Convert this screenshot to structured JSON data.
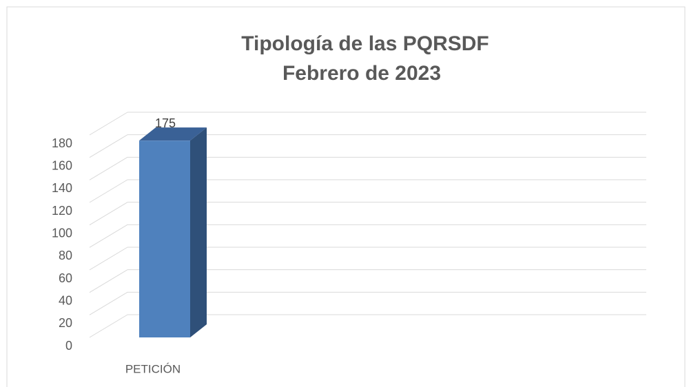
{
  "chart_data": {
    "type": "bar3d",
    "title": "Tipología de las PQRSDF",
    "subtitle": "Febrero de 2023",
    "categories": [
      "PETICIÓN"
    ],
    "values": [
      175
    ],
    "color": "#4f81bd",
    "ylim": [
      0,
      180
    ],
    "yticks": [
      0,
      20,
      40,
      60,
      80,
      100,
      120,
      140,
      160,
      180
    ],
    "grid": true
  }
}
